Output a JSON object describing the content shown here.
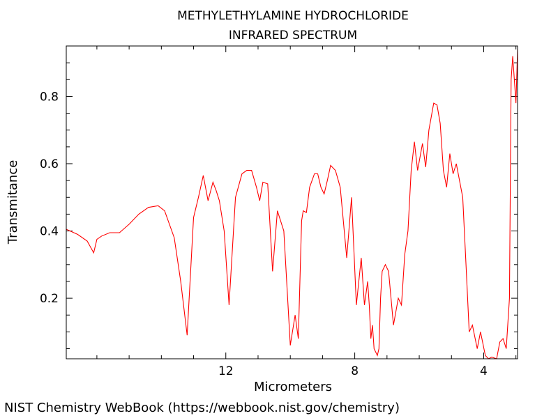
{
  "chart_data": {
    "type": "line",
    "title": "METHYLETHYLAMINE HYDROCHLORIDE",
    "subtitle": "INFRARED SPECTRUM",
    "xlabel": "Micrometers",
    "ylabel": "Transmitance",
    "xlim": [
      16.95,
      2.95
    ],
    "ylim": [
      0.02,
      0.95
    ],
    "x_ticks": [
      12,
      8,
      4
    ],
    "x_tick_labels": [
      "12",
      "8",
      "4"
    ],
    "y_ticks": [
      0.2,
      0.4,
      0.6,
      0.8
    ],
    "y_tick_labels": [
      "0.2",
      "0.4",
      "0.6",
      "0.8"
    ],
    "grid": false,
    "series": [
      {
        "color": "#ff0000",
        "x": [
          16.95,
          16.6,
          16.3,
          16.1,
          16.0,
          15.85,
          15.6,
          15.3,
          15.0,
          14.7,
          14.4,
          14.1,
          13.9,
          13.6,
          13.4,
          13.2,
          13.0,
          12.85,
          12.7,
          12.55,
          12.4,
          12.3,
          12.2,
          12.05,
          11.9,
          11.7,
          11.5,
          11.35,
          11.2,
          11.05,
          10.95,
          10.85,
          10.7,
          10.55,
          10.4,
          10.2,
          10.0,
          9.85,
          9.75,
          9.65,
          9.6,
          9.5,
          9.4,
          9.25,
          9.15,
          9.05,
          8.95,
          8.85,
          8.75,
          8.6,
          8.45,
          8.25,
          8.1,
          7.95,
          7.8,
          7.7,
          7.6,
          7.55,
          7.5,
          7.45,
          7.4,
          7.3,
          7.25,
          7.2,
          7.15,
          7.05,
          6.95,
          6.8,
          6.65,
          6.55,
          6.45,
          6.35,
          6.25,
          6.15,
          6.05,
          5.9,
          5.8,
          5.7,
          5.55,
          5.45,
          5.35,
          5.25,
          5.15,
          5.05,
          4.95,
          4.85,
          4.75,
          4.65,
          4.55,
          4.45,
          4.35,
          4.2,
          4.1,
          3.95,
          3.85,
          3.75,
          3.6,
          3.5,
          3.4,
          3.3,
          3.2,
          3.15,
          3.1,
          3.05,
          3.0,
          2.95
        ],
        "values": [
          0.405,
          0.39,
          0.37,
          0.335,
          0.375,
          0.385,
          0.395,
          0.395,
          0.42,
          0.45,
          0.47,
          0.475,
          0.46,
          0.38,
          0.25,
          0.09,
          0.44,
          0.5,
          0.565,
          0.49,
          0.545,
          0.52,
          0.49,
          0.4,
          0.18,
          0.5,
          0.57,
          0.58,
          0.58,
          0.53,
          0.49,
          0.545,
          0.54,
          0.28,
          0.46,
          0.4,
          0.06,
          0.15,
          0.08,
          0.43,
          0.46,
          0.455,
          0.53,
          0.57,
          0.57,
          0.53,
          0.51,
          0.55,
          0.595,
          0.58,
          0.53,
          0.32,
          0.5,
          0.18,
          0.32,
          0.18,
          0.25,
          0.18,
          0.08,
          0.12,
          0.05,
          0.03,
          0.05,
          0.2,
          0.28,
          0.3,
          0.28,
          0.12,
          0.2,
          0.18,
          0.33,
          0.4,
          0.58,
          0.665,
          0.58,
          0.66,
          0.59,
          0.7,
          0.78,
          0.775,
          0.72,
          0.58,
          0.53,
          0.63,
          0.57,
          0.6,
          0.55,
          0.5,
          0.3,
          0.1,
          0.12,
          0.05,
          0.1,
          0.03,
          0.02,
          0.025,
          0.02,
          0.07,
          0.08,
          0.05,
          0.2,
          0.85,
          0.92,
          0.85,
          0.78,
          0.94
        ]
      }
    ]
  },
  "footer": "NIST Chemistry WebBook (https://webbook.nist.gov/chemistry)"
}
